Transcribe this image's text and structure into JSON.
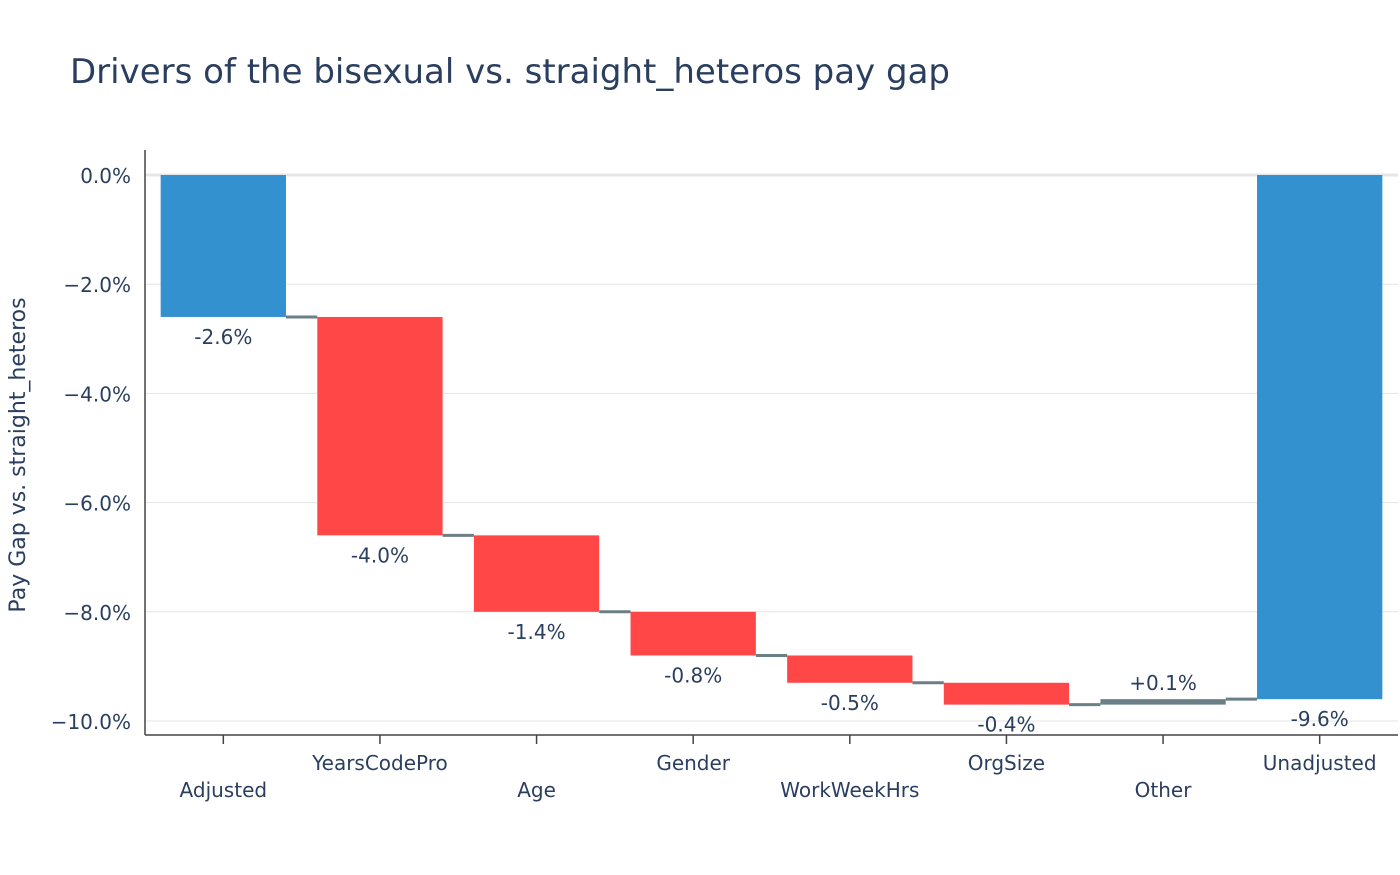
{
  "chart_data": {
    "type": "waterfall",
    "title": "Drivers of the bisexual vs. straight_heteros pay gap",
    "ylabel": "Pay Gap vs. straight_heteros",
    "xlabel": "",
    "ylim": [
      -10.3,
      0.0
    ],
    "yticks": [
      0,
      -2,
      -4,
      -6,
      -8,
      -10
    ],
    "ytick_labels": [
      "0.0%",
      "−2.0%",
      "−4.0%",
      "−6.0%",
      "−8.0%",
      "−10.0%"
    ],
    "grid": true,
    "categories": [
      "Adjusted",
      "YearsCodePro",
      "Age",
      "Gender",
      "WorkWeekHrs",
      "OrgSize",
      "Other",
      "Unadjusted"
    ],
    "measure": [
      "absolute",
      "relative",
      "relative",
      "relative",
      "relative",
      "relative",
      "relative",
      "total"
    ],
    "values": [
      -2.6,
      -4.0,
      -1.4,
      -0.8,
      -0.5,
      -0.4,
      0.1,
      -9.6
    ],
    "labels": [
      "-2.6%",
      "-4.0%",
      "-1.4%",
      "-0.8%",
      "-0.5%",
      "-0.4%",
      "+0.1%",
      "-9.6%"
    ],
    "colors": {
      "total": "#3491d0",
      "decreasing": "#ff4747",
      "increasing": "#6b7f86",
      "connector": "#6b7f86",
      "grid": "#e6e6e6",
      "axis": "#444444",
      "zeroline": "#e6e6e6"
    }
  }
}
